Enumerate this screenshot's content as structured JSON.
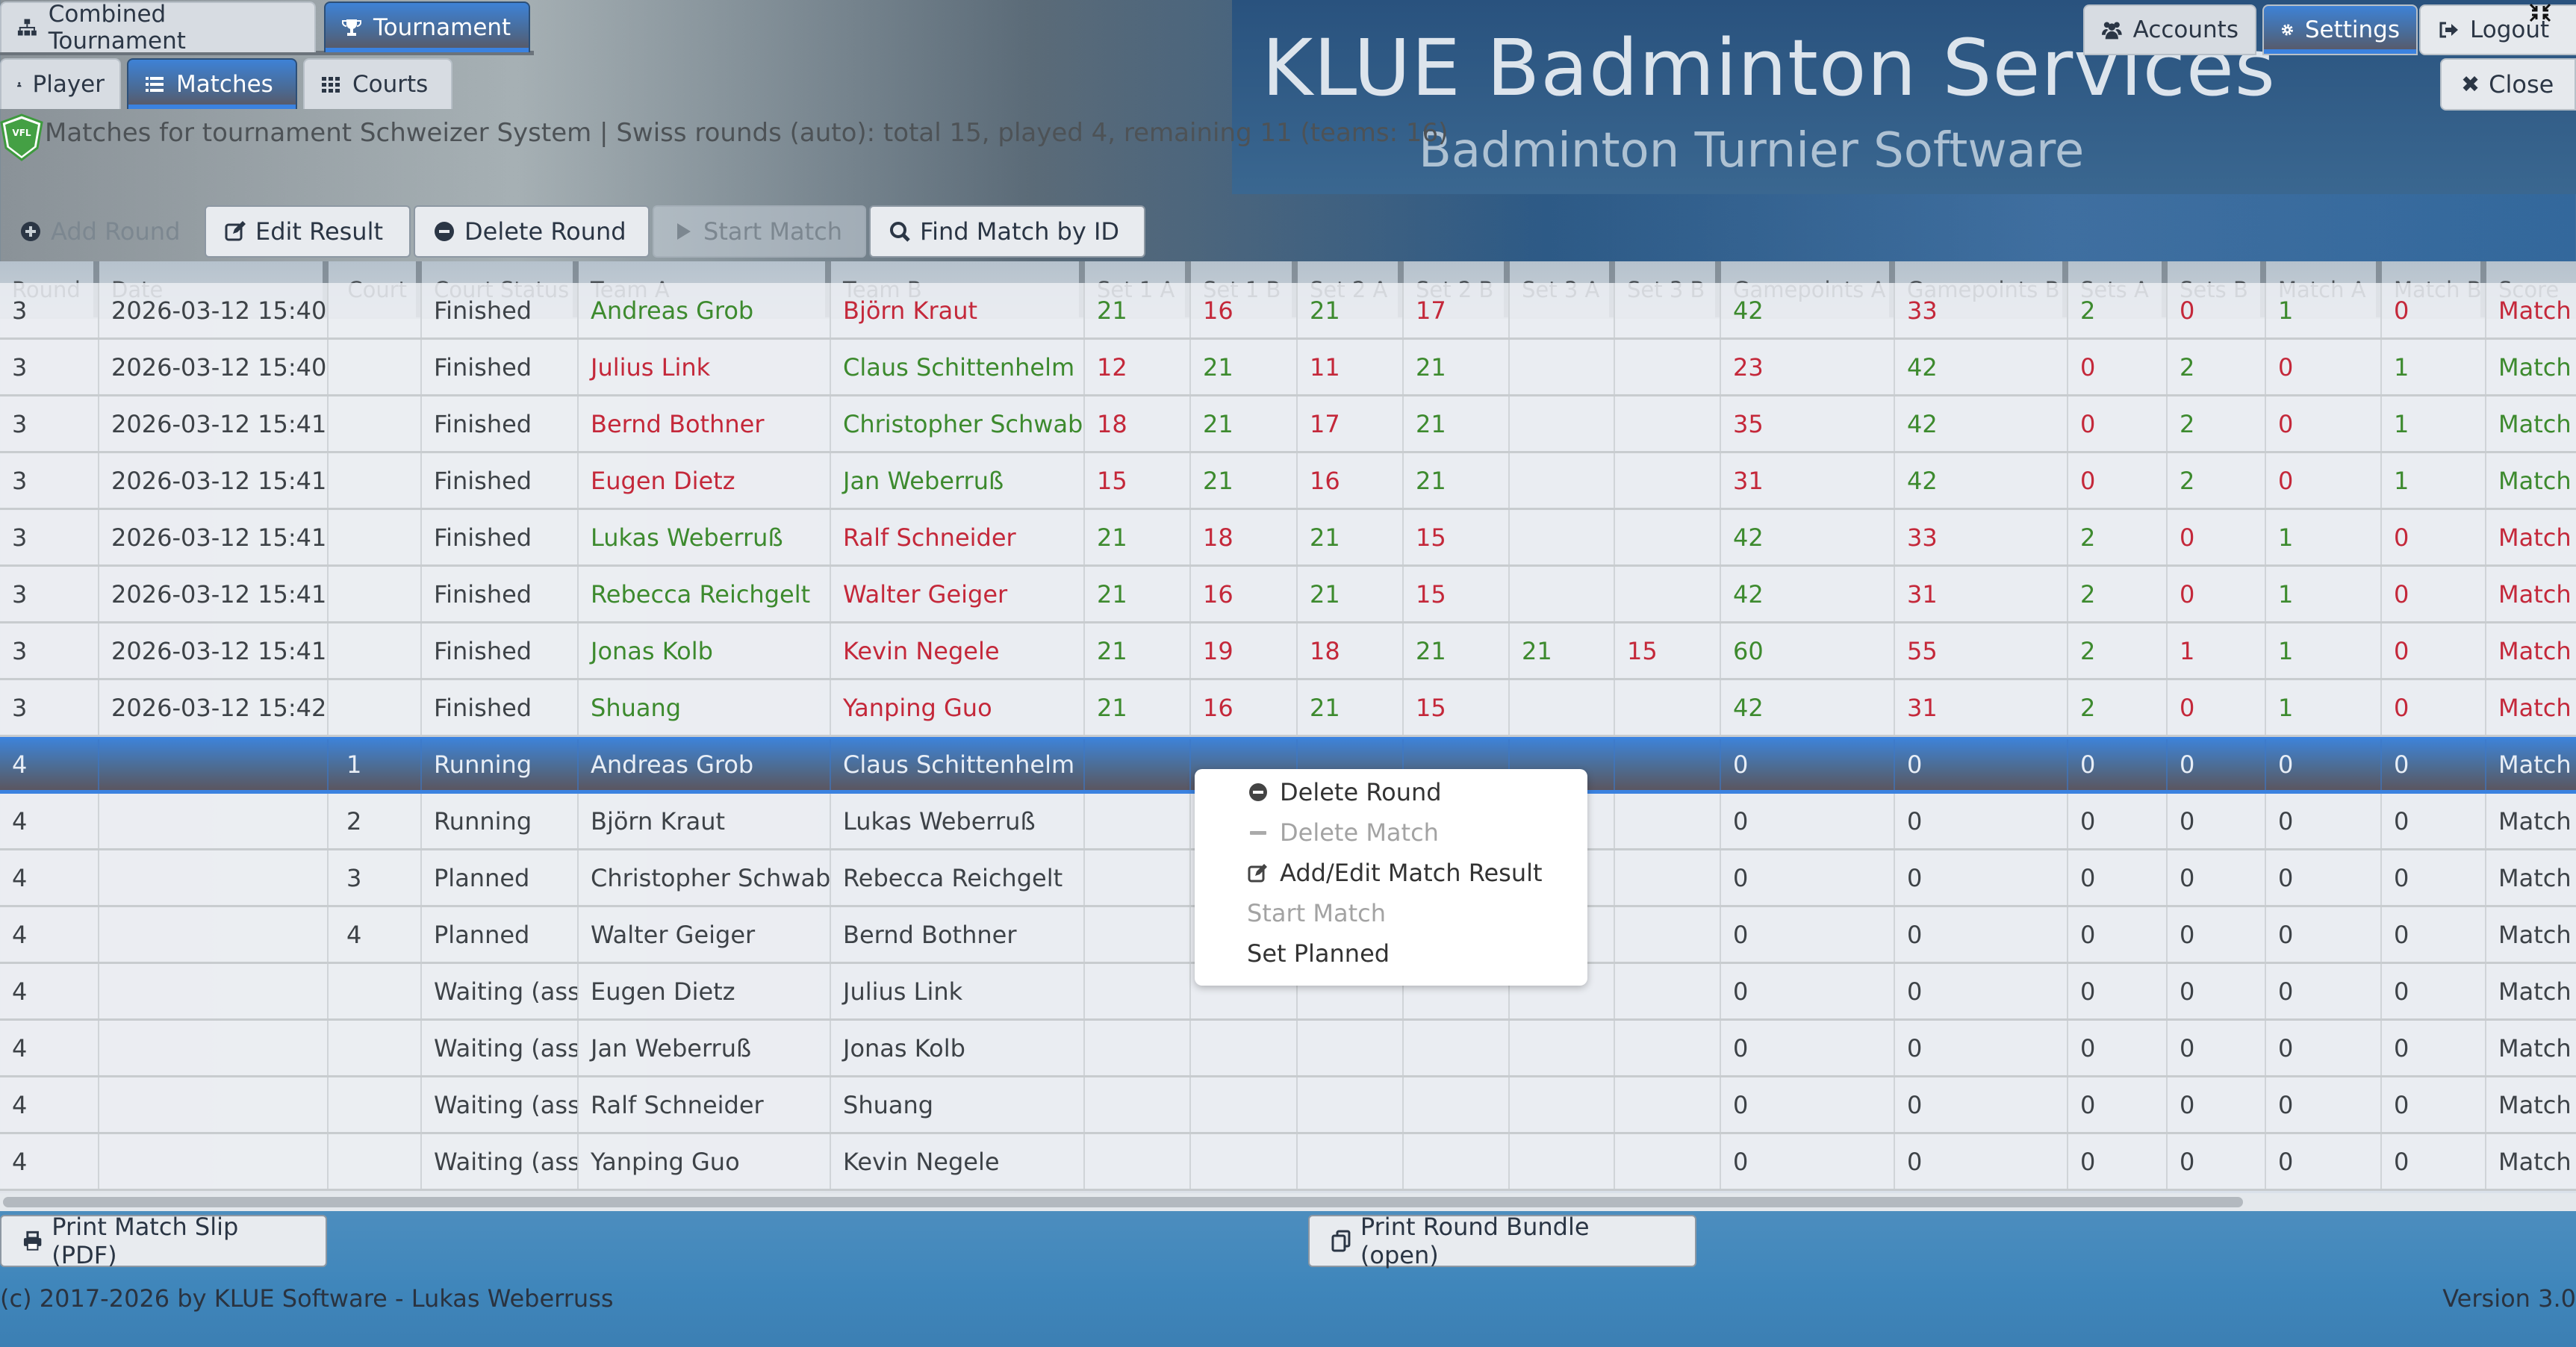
{
  "nav": {
    "top_tabs": [
      {
        "label": "Combined Tournament",
        "icon": "sitemap-icon",
        "active": false
      },
      {
        "label": "Tournament",
        "icon": "trophy-icon",
        "active": true
      }
    ],
    "sub_tabs": [
      {
        "label": "Player",
        "icon": "user-icon",
        "active": false
      },
      {
        "label": "Matches",
        "icon": "list-icon",
        "active": true
      },
      {
        "label": "Courts",
        "icon": "grid-icon",
        "active": false
      }
    ],
    "right_buttons": [
      {
        "label": "Accounts",
        "icon": "users-icon",
        "active": false
      },
      {
        "label": "Settings",
        "icon": "gear-icon",
        "active": true
      },
      {
        "label": "Logout",
        "icon": "logout-icon",
        "active": false
      }
    ],
    "close_label": "Close"
  },
  "banner": {
    "title": "KLUE Badminton Services",
    "subtitle": "Badminton Turnier Software"
  },
  "info_text": "Matches for tournament Schweizer System | Swiss rounds (auto): total 15, played 4, remaining 11 (teams: 16)",
  "toolbar": {
    "add_round": "Add Round",
    "edit_result": "Edit Result",
    "delete_round": "Delete Round",
    "start_match": "Start Match",
    "find_match": "Find Match by ID"
  },
  "table": {
    "columns": [
      "Round",
      "Date",
      "Court",
      "Court Status",
      "Team A",
      "Team B",
      "Set 1 A",
      "Set 1 B",
      "Set 2 A",
      "Set 2 B",
      "Set 3 A",
      "Set 3 B",
      "Gamepoints A",
      "Gamepoints B",
      "Sets A",
      "Sets B",
      "Match A",
      "Match B",
      "Score"
    ],
    "rows": [
      {
        "round": "3",
        "date": "2026-03-12 15:40",
        "court": "",
        "status": "Finished",
        "team_a": "Andreas Grob",
        "team_b": "Björn Kraut",
        "s1a": "21",
        "s1b": "16",
        "s2a": "21",
        "s2b": "17",
        "s3a": "",
        "s3b": "",
        "gpa": "42",
        "gpb": "33",
        "sa": "2",
        "sb": "0",
        "ma": "1",
        "mb": "0",
        "score": "Match",
        "winner": "A",
        "partial": true
      },
      {
        "round": "3",
        "date": "2026-03-12 15:40",
        "court": "",
        "status": "Finished",
        "team_a": "Julius Link",
        "team_b": "Claus Schittenhelm",
        "s1a": "12",
        "s1b": "21",
        "s2a": "11",
        "s2b": "21",
        "s3a": "",
        "s3b": "",
        "gpa": "23",
        "gpb": "42",
        "sa": "0",
        "sb": "2",
        "ma": "0",
        "mb": "1",
        "score": "Match",
        "winner": "B"
      },
      {
        "round": "3",
        "date": "2026-03-12 15:41",
        "court": "",
        "status": "Finished",
        "team_a": "Bernd Bothner",
        "team_b": "Christopher Schwab",
        "s1a": "18",
        "s1b": "21",
        "s2a": "17",
        "s2b": "21",
        "s3a": "",
        "s3b": "",
        "gpa": "35",
        "gpb": "42",
        "sa": "0",
        "sb": "2",
        "ma": "0",
        "mb": "1",
        "score": "Match",
        "winner": "B"
      },
      {
        "round": "3",
        "date": "2026-03-12 15:41",
        "court": "",
        "status": "Finished",
        "team_a": "Eugen Dietz",
        "team_b": "Jan Weberruß",
        "s1a": "15",
        "s1b": "21",
        "s2a": "16",
        "s2b": "21",
        "s3a": "",
        "s3b": "",
        "gpa": "31",
        "gpb": "42",
        "sa": "0",
        "sb": "2",
        "ma": "0",
        "mb": "1",
        "score": "Match",
        "winner": "B"
      },
      {
        "round": "3",
        "date": "2026-03-12 15:41",
        "court": "",
        "status": "Finished",
        "team_a": "Lukas Weberruß",
        "team_b": "Ralf Schneider",
        "s1a": "21",
        "s1b": "18",
        "s2a": "21",
        "s2b": "15",
        "s3a": "",
        "s3b": "",
        "gpa": "42",
        "gpb": "33",
        "sa": "2",
        "sb": "0",
        "ma": "1",
        "mb": "0",
        "score": "Match",
        "winner": "A"
      },
      {
        "round": "3",
        "date": "2026-03-12 15:41",
        "court": "",
        "status": "Finished",
        "team_a": "Rebecca Reichgelt",
        "team_b": "Walter Geiger",
        "s1a": "21",
        "s1b": "16",
        "s2a": "21",
        "s2b": "15",
        "s3a": "",
        "s3b": "",
        "gpa": "42",
        "gpb": "31",
        "sa": "2",
        "sb": "0",
        "ma": "1",
        "mb": "0",
        "score": "Match",
        "winner": "A"
      },
      {
        "round": "3",
        "date": "2026-03-12 15:41",
        "court": "",
        "status": "Finished",
        "team_a": "Jonas Kolb",
        "team_b": "Kevin Negele",
        "s1a": "21",
        "s1b": "19",
        "s2a": "18",
        "s2b": "21",
        "s3a": "21",
        "s3b": "15",
        "gpa": "60",
        "gpb": "55",
        "sa": "2",
        "sb": "1",
        "ma": "1",
        "mb": "0",
        "score": "Match",
        "winner": "A"
      },
      {
        "round": "3",
        "date": "2026-03-12 15:42",
        "court": "",
        "status": "Finished",
        "team_a": "Shuang",
        "team_b": "Yanping Guo",
        "s1a": "21",
        "s1b": "16",
        "s2a": "21",
        "s2b": "15",
        "s3a": "",
        "s3b": "",
        "gpa": "42",
        "gpb": "31",
        "sa": "2",
        "sb": "0",
        "ma": "1",
        "mb": "0",
        "score": "Match",
        "winner": "A"
      },
      {
        "round": "4",
        "date": "",
        "court": "1",
        "status": "Running",
        "team_a": "Andreas Grob",
        "team_b": "Claus Schittenhelm",
        "s1a": "",
        "s1b": "",
        "s2a": "",
        "s2b": "",
        "s3a": "",
        "s3b": "",
        "gpa": "0",
        "gpb": "0",
        "sa": "0",
        "sb": "0",
        "ma": "0",
        "mb": "0",
        "score": "Match",
        "winner": "",
        "selected": true
      },
      {
        "round": "4",
        "date": "",
        "court": "2",
        "status": "Running",
        "team_a": "Björn Kraut",
        "team_b": "Lukas Weberruß",
        "s1a": "",
        "s1b": "",
        "s2a": "",
        "s2b": "",
        "s3a": "",
        "s3b": "",
        "gpa": "0",
        "gpb": "0",
        "sa": "0",
        "sb": "0",
        "ma": "0",
        "mb": "0",
        "score": "Match",
        "winner": ""
      },
      {
        "round": "4",
        "date": "",
        "court": "3",
        "status": "Planned",
        "team_a": "Christopher Schwab",
        "team_b": "Rebecca Reichgelt",
        "s1a": "",
        "s1b": "",
        "s2a": "",
        "s2b": "",
        "s3a": "",
        "s3b": "",
        "gpa": "0",
        "gpb": "0",
        "sa": "0",
        "sb": "0",
        "ma": "0",
        "mb": "0",
        "score": "Match",
        "winner": ""
      },
      {
        "round": "4",
        "date": "",
        "court": "4",
        "status": "Planned",
        "team_a": "Walter Geiger",
        "team_b": "Bernd Bothner",
        "s1a": "",
        "s1b": "",
        "s2a": "",
        "s2b": "",
        "s3a": "",
        "s3b": "",
        "gpa": "0",
        "gpb": "0",
        "sa": "0",
        "sb": "0",
        "ma": "0",
        "mb": "0",
        "score": "Match",
        "winner": ""
      },
      {
        "round": "4",
        "date": "",
        "court": "",
        "status": "Waiting (assig",
        "team_a": "Eugen Dietz",
        "team_b": "Julius Link",
        "s1a": "",
        "s1b": "",
        "s2a": "",
        "s2b": "",
        "s3a": "",
        "s3b": "",
        "gpa": "0",
        "gpb": "0",
        "sa": "0",
        "sb": "0",
        "ma": "0",
        "mb": "0",
        "score": "Match",
        "winner": ""
      },
      {
        "round": "4",
        "date": "",
        "court": "",
        "status": "Waiting (assig",
        "team_a": "Jan Weberruß",
        "team_b": "Jonas Kolb",
        "s1a": "",
        "s1b": "",
        "s2a": "",
        "s2b": "",
        "s3a": "",
        "s3b": "",
        "gpa": "0",
        "gpb": "0",
        "sa": "0",
        "sb": "0",
        "ma": "0",
        "mb": "0",
        "score": "Match",
        "winner": ""
      },
      {
        "round": "4",
        "date": "",
        "court": "",
        "status": "Waiting (assig",
        "team_a": "Ralf Schneider",
        "team_b": "Shuang",
        "s1a": "",
        "s1b": "",
        "s2a": "",
        "s2b": "",
        "s3a": "",
        "s3b": "",
        "gpa": "0",
        "gpb": "0",
        "sa": "0",
        "sb": "0",
        "ma": "0",
        "mb": "0",
        "score": "Match",
        "winner": ""
      },
      {
        "round": "4",
        "date": "",
        "court": "",
        "status": "Waiting (assig",
        "team_a": "Yanping Guo",
        "team_b": "Kevin Negele",
        "s1a": "",
        "s1b": "",
        "s2a": "",
        "s2b": "",
        "s3a": "",
        "s3b": "",
        "gpa": "0",
        "gpb": "0",
        "sa": "0",
        "sb": "0",
        "ma": "0",
        "mb": "0",
        "score": "Match",
        "winner": ""
      }
    ]
  },
  "context_menu": {
    "items": [
      {
        "label": "Delete Round",
        "icon": "minus-circle-icon",
        "disabled": false
      },
      {
        "label": "Delete Match",
        "icon": "minus-icon",
        "disabled": true
      },
      {
        "label": "Add/Edit Match Result",
        "icon": "edit-icon",
        "disabled": false
      },
      {
        "label": "Start Match",
        "icon": "",
        "disabled": true
      },
      {
        "label": "Set Planned",
        "icon": "",
        "disabled": false
      }
    ]
  },
  "bottom": {
    "print_slip": "Print Match Slip (PDF)",
    "print_bundle": "Print Round Bundle (open)",
    "copyright": "(c) 2017-2026 by KLUE Software - Lukas Weberruss",
    "version": "Version 3.0"
  },
  "colors": {
    "accent": "#3b82e0",
    "win": "#3d8a2e",
    "lose": "#c4283a"
  }
}
